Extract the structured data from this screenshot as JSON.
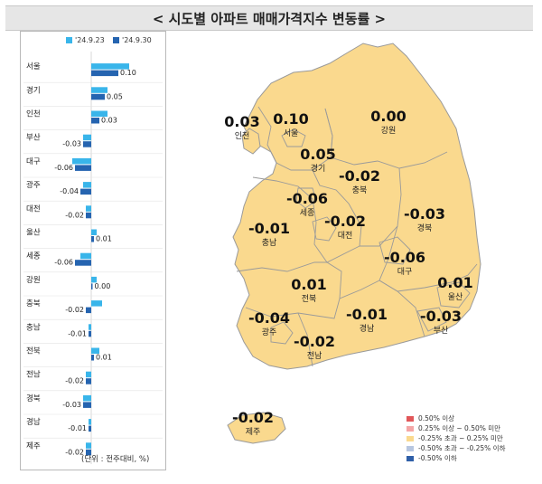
{
  "title": "< 시도별 아파트 매매가격지수 변동률 >",
  "unit_note": "(단위 : 전주대비, %)",
  "colors": {
    "series1": "#39b5ea",
    "series2": "#2564b0",
    "land": "#fad98e",
    "border": "#9a9a9a"
  },
  "chart_data": {
    "type": "bar",
    "orientation": "horizontal",
    "categories": [
      "서울",
      "경기",
      "인천",
      "부산",
      "대구",
      "광주",
      "대전",
      "울산",
      "세종",
      "강원",
      "충북",
      "충남",
      "전북",
      "전남",
      "경북",
      "경남",
      "제주"
    ],
    "series": [
      {
        "name": "'24.9.23",
        "values": [
          0.14,
          0.06,
          0.06,
          -0.03,
          -0.07,
          -0.03,
          -0.02,
          0.02,
          -0.04,
          0.02,
          0.04,
          -0.01,
          0.03,
          -0.02,
          -0.03,
          -0.01,
          -0.02
        ]
      },
      {
        "name": "'24.9.30",
        "values": [
          0.1,
          0.05,
          0.03,
          -0.03,
          -0.06,
          -0.04,
          -0.02,
          0.01,
          -0.06,
          0.0,
          -0.02,
          -0.01,
          0.01,
          -0.02,
          -0.03,
          -0.01,
          -0.02
        ]
      }
    ],
    "value_labels": [
      "0.10",
      "0.05",
      "0.03",
      "-0.03",
      "-0.06",
      "-0.04",
      "-0.02",
      "0.01",
      "-0.06",
      "0.00",
      "-0.02",
      "-0.01",
      "0.01",
      "-0.02",
      "-0.03",
      "-0.01",
      "-0.02"
    ],
    "legend_position": "top"
  },
  "map": {
    "regions": [
      {
        "name": "인천",
        "value": "0.03"
      },
      {
        "name": "서울",
        "value": "0.10"
      },
      {
        "name": "강원",
        "value": "0.00"
      },
      {
        "name": "경기",
        "value": "0.05"
      },
      {
        "name": "충북",
        "value": "-0.02"
      },
      {
        "name": "세종",
        "value": "-0.06"
      },
      {
        "name": "대전",
        "value": "-0.02"
      },
      {
        "name": "경북",
        "value": "-0.03"
      },
      {
        "name": "충남",
        "value": "-0.01"
      },
      {
        "name": "대구",
        "value": "-0.06"
      },
      {
        "name": "전북",
        "value": "0.01"
      },
      {
        "name": "울산",
        "value": "0.01"
      },
      {
        "name": "광주",
        "value": "-0.04"
      },
      {
        "name": "경남",
        "value": "-0.01"
      },
      {
        "name": "부산",
        "value": "-0.03"
      },
      {
        "name": "전남",
        "value": "-0.02"
      },
      {
        "name": "제주",
        "value": "-0.02"
      }
    ],
    "legend": [
      {
        "label": "0.50% 이상",
        "color": "#e15759"
      },
      {
        "label": "0.25% 이상 ~ 0.50% 미만",
        "color": "#f4a6a6"
      },
      {
        "label": "-0.25% 초과 ~ 0.25% 미만",
        "color": "#fad98e"
      },
      {
        "label": "-0.50% 초과 ~ -0.25% 이하",
        "color": "#b7c6e0"
      },
      {
        "label": "-0.50% 이하",
        "color": "#2f5fa8"
      }
    ]
  }
}
